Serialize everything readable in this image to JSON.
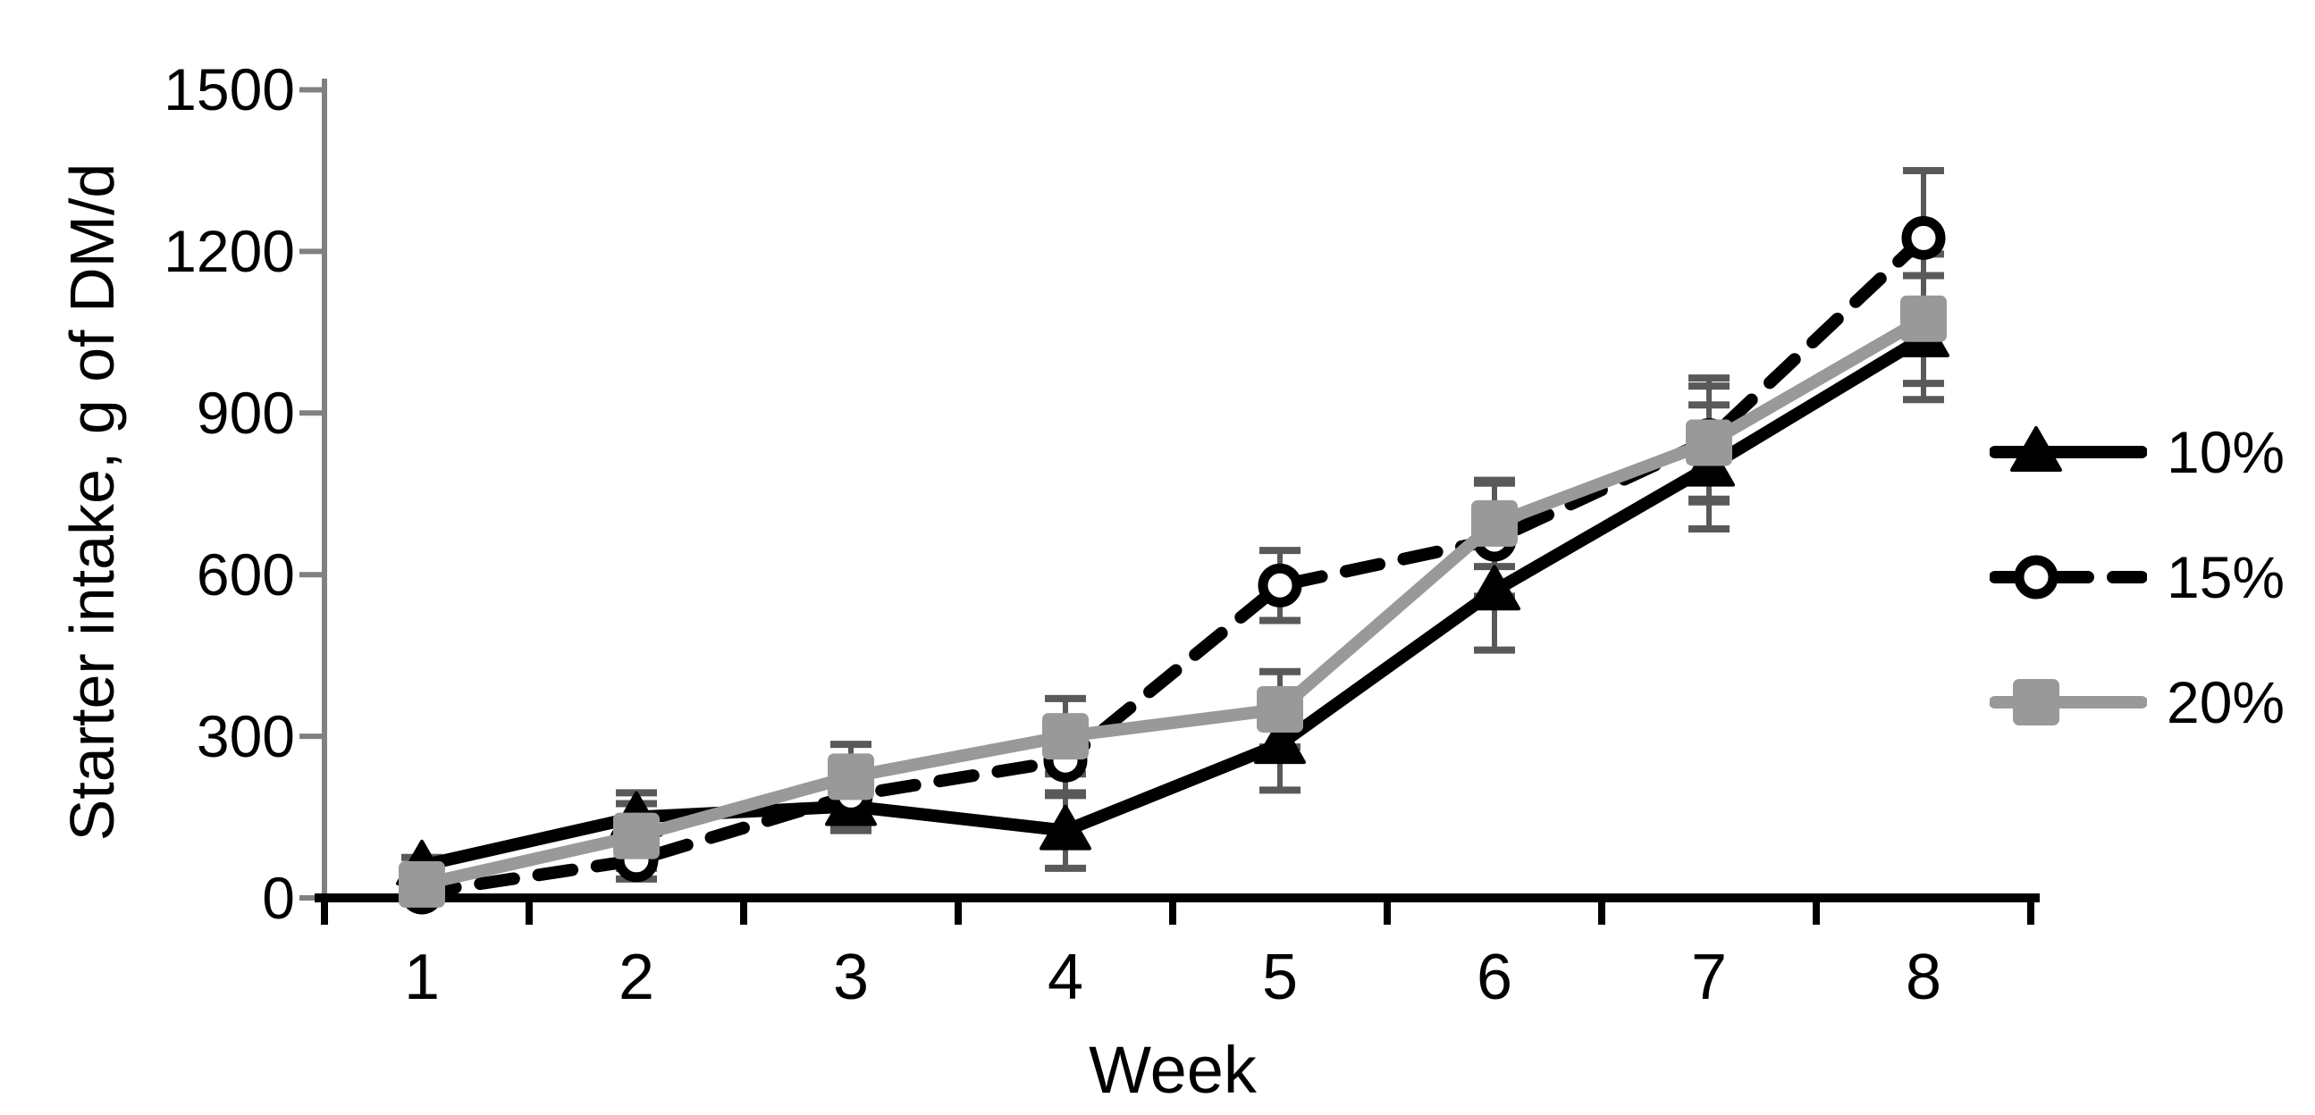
{
  "chart_data": {
    "type": "line",
    "title": "",
    "xlabel": "Week",
    "ylabel": "Starter intake, g of DM/d",
    "x": [
      1,
      2,
      3,
      4,
      5,
      6,
      7,
      8
    ],
    "ylim": [
      0,
      1500
    ],
    "yticks": [
      0,
      300,
      600,
      900,
      1200,
      1500
    ],
    "grid": "off",
    "legend_position": "right",
    "axis_colors": {
      "y_axis": "#808080",
      "x_axis": "#000000"
    },
    "error_bar_color": "#595959",
    "series": [
      {
        "name": "10%",
        "color": "#000000",
        "line_style": "solid",
        "marker": "triangle-filled",
        "values": [
          60,
          150,
          170,
          125,
          285,
          570,
          800,
          1040
        ],
        "errors": [
          15,
          45,
          45,
          70,
          85,
          110,
          115,
          115
        ]
      },
      {
        "name": "15%",
        "color": "#000000",
        "line_style": "dashed",
        "marker": "circle-open",
        "values": [
          10,
          70,
          190,
          255,
          580,
          665,
          850,
          1225
        ],
        "errors": [
          10,
          35,
          55,
          65,
          65,
          105,
          115,
          125
        ]
      },
      {
        "name": "20%",
        "color": "#999999",
        "line_style": "solid",
        "marker": "square-filled",
        "values": [
          25,
          115,
          225,
          300,
          350,
          695,
          845,
          1075
        ],
        "errors": [
          20,
          60,
          60,
          70,
          70,
          80,
          105,
          120
        ]
      }
    ]
  }
}
